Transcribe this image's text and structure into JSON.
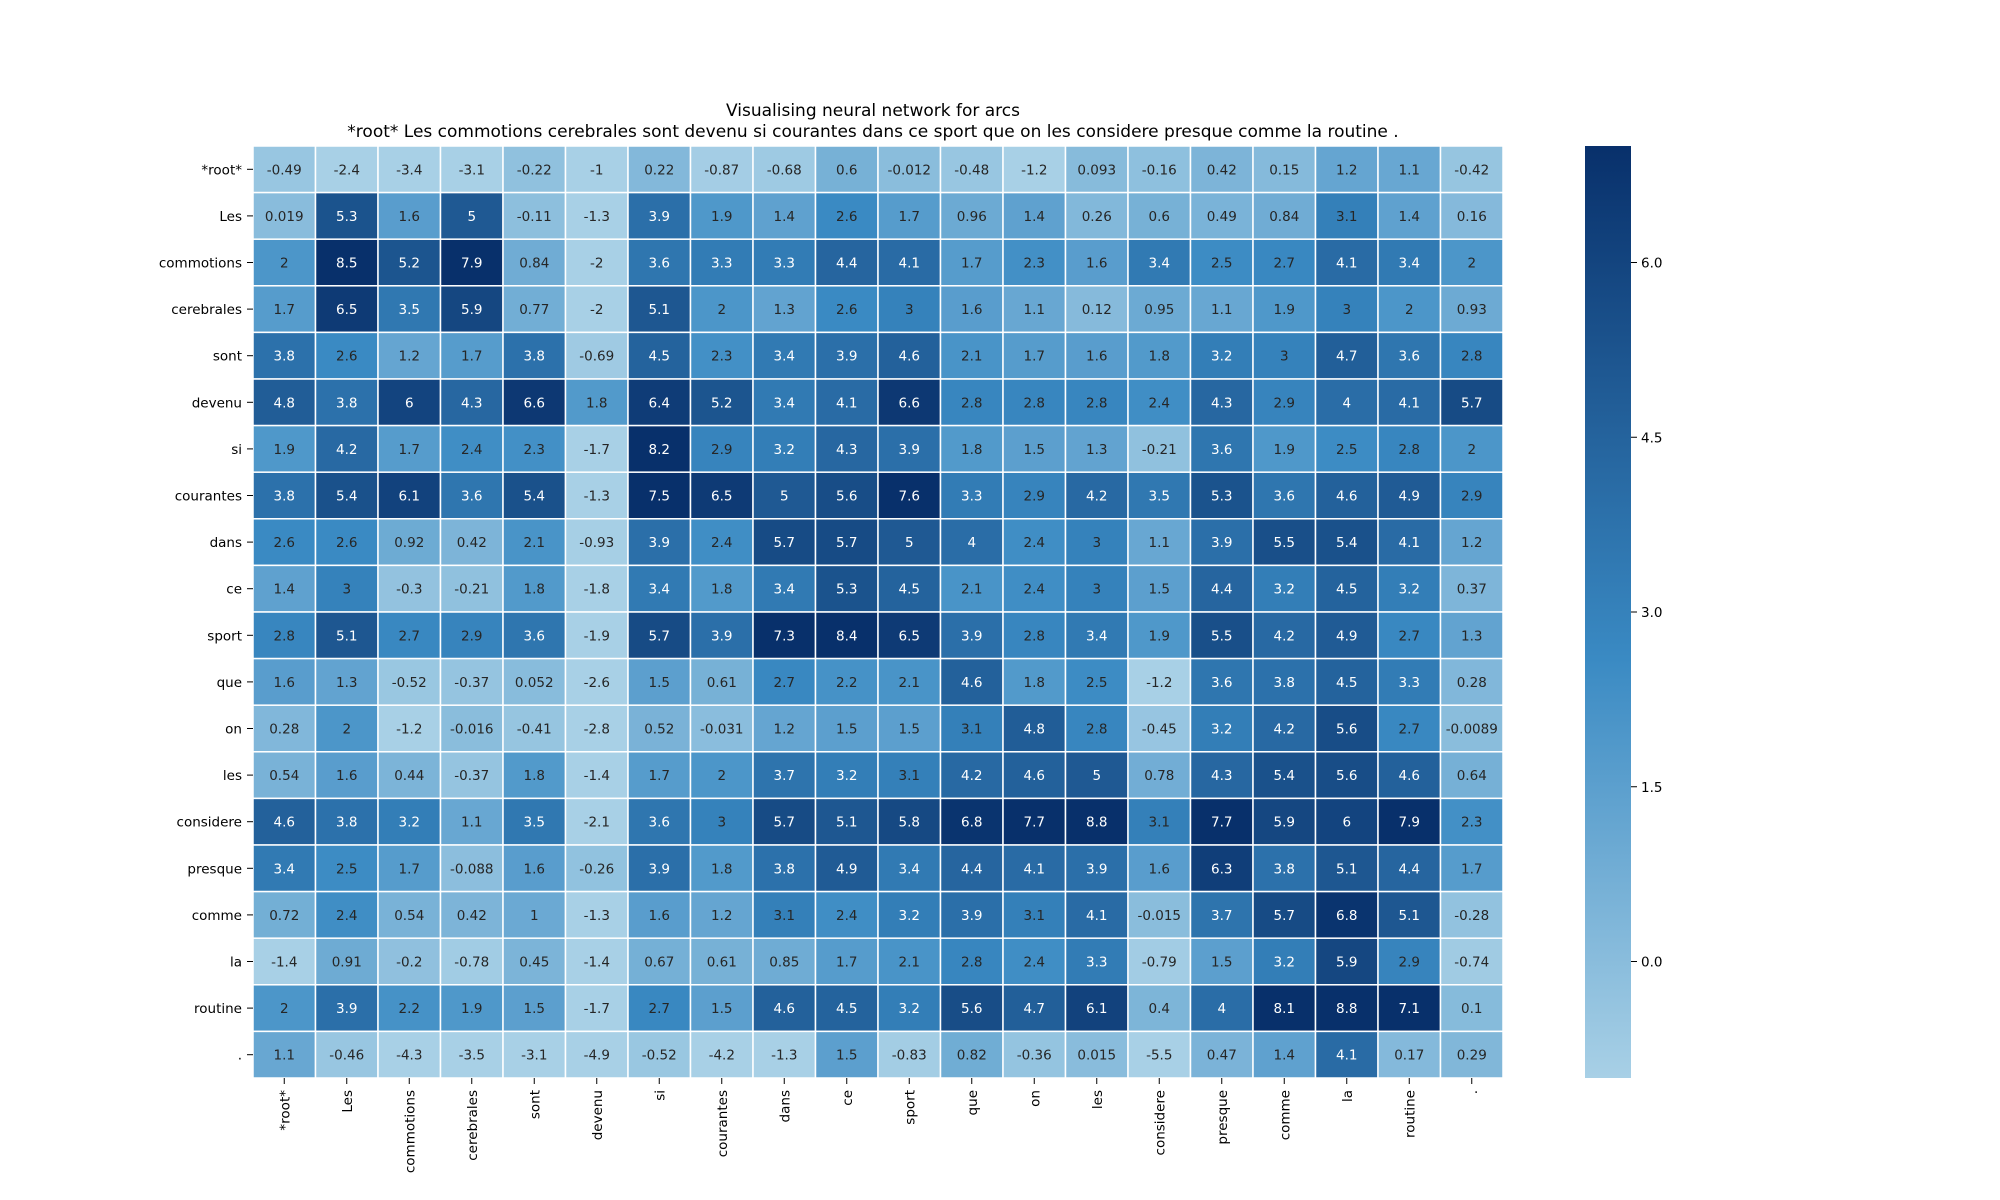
{
  "chart_data": {
    "type": "heatmap",
    "title": "Visualising neural network for arcs",
    "subtitle": "*root* Les commotions cerebrales sont devenu si courantes dans ce sport que on les considere presque comme la routine .",
    "xlabel": "",
    "ylabel": "",
    "colormap": "Blues",
    "colors": {
      "low": "#a8d0e6",
      "mid": "#3a8ac3",
      "high": "#08306b"
    },
    "vmin": -1.0,
    "vmax": 7.0,
    "colorbar_ticks": [
      "0.0",
      "1.5",
      "3.0",
      "4.5",
      "6.0"
    ],
    "row_labels": [
      "*root*",
      "Les",
      "commotions",
      "cerebrales",
      "sont",
      "devenu",
      "si",
      "courantes",
      "dans",
      "ce",
      "sport",
      "que",
      "on",
      "les",
      "considere",
      "presque",
      "comme",
      "la",
      "routine",
      "."
    ],
    "col_labels": [
      "*root*",
      "Les",
      "commotions",
      "cerebrales",
      "sont",
      "devenu",
      "si",
      "courantes",
      "dans",
      "ce",
      "sport",
      "que",
      "on",
      "les",
      "considere",
      "presque",
      "comme",
      "la",
      "routine",
      "."
    ],
    "values": [
      [
        "-0.49",
        "-2.4",
        "-3.4",
        "-3.1",
        "-0.22",
        "-1",
        "0.22",
        "-0.87",
        "-0.68",
        "0.6",
        "-0.012",
        "-0.48",
        "-1.2",
        "0.093",
        "-0.16",
        "0.42",
        "0.15",
        "1.2",
        "1.1",
        "-0.42"
      ],
      [
        "0.019",
        "5.3",
        "1.6",
        "5",
        "-0.11",
        "-1.3",
        "3.9",
        "1.9",
        "1.4",
        "2.6",
        "1.7",
        "0.96",
        "1.4",
        "0.26",
        "0.6",
        "0.49",
        "0.84",
        "3.1",
        "1.4",
        "0.16"
      ],
      [
        "2",
        "8.5",
        "5.2",
        "7.9",
        "0.84",
        "-2",
        "3.6",
        "3.3",
        "3.3",
        "4.4",
        "4.1",
        "1.7",
        "2.3",
        "1.6",
        "3.4",
        "2.5",
        "2.7",
        "4.1",
        "3.4",
        "2"
      ],
      [
        "1.7",
        "6.5",
        "3.5",
        "5.9",
        "0.77",
        "-2",
        "5.1",
        "2",
        "1.3",
        "2.6",
        "3",
        "1.6",
        "1.1",
        "0.12",
        "0.95",
        "1.1",
        "1.9",
        "3",
        "2",
        "0.93"
      ],
      [
        "3.8",
        "2.6",
        "1.2",
        "1.7",
        "3.8",
        "-0.69",
        "4.5",
        "2.3",
        "3.4",
        "3.9",
        "4.6",
        "2.1",
        "1.7",
        "1.6",
        "1.8",
        "3.2",
        "3",
        "4.7",
        "3.6",
        "2.8"
      ],
      [
        "4.8",
        "3.8",
        "6",
        "4.3",
        "6.6",
        "1.8",
        "6.4",
        "5.2",
        "3.4",
        "4.1",
        "6.6",
        "2.8",
        "2.8",
        "2.8",
        "2.4",
        "4.3",
        "2.9",
        "4",
        "4.1",
        "5.7"
      ],
      [
        "1.9",
        "4.2",
        "1.7",
        "2.4",
        "2.3",
        "-1.7",
        "8.2",
        "2.9",
        "3.2",
        "4.3",
        "3.9",
        "1.8",
        "1.5",
        "1.3",
        "-0.21",
        "3.6",
        "1.9",
        "2.5",
        "2.8",
        "2"
      ],
      [
        "3.8",
        "5.4",
        "6.1",
        "3.6",
        "5.4",
        "-1.3",
        "7.5",
        "6.5",
        "5",
        "5.6",
        "7.6",
        "3.3",
        "2.9",
        "4.2",
        "3.5",
        "5.3",
        "3.6",
        "4.6",
        "4.9",
        "2.9"
      ],
      [
        "2.6",
        "2.6",
        "0.92",
        "0.42",
        "2.1",
        "-0.93",
        "3.9",
        "2.4",
        "5.7",
        "5.7",
        "5",
        "4",
        "2.4",
        "3",
        "1.1",
        "3.9",
        "5.5",
        "5.4",
        "4.1",
        "1.2"
      ],
      [
        "1.4",
        "3",
        "-0.3",
        "-0.21",
        "1.8",
        "-1.8",
        "3.4",
        "1.8",
        "3.4",
        "5.3",
        "4.5",
        "2.1",
        "2.4",
        "3",
        "1.5",
        "4.4",
        "3.2",
        "4.5",
        "3.2",
        "0.37"
      ],
      [
        "2.8",
        "5.1",
        "2.7",
        "2.9",
        "3.6",
        "-1.9",
        "5.7",
        "3.9",
        "7.3",
        "8.4",
        "6.5",
        "3.9",
        "2.8",
        "3.4",
        "1.9",
        "5.5",
        "4.2",
        "4.9",
        "2.7",
        "1.3"
      ],
      [
        "1.6",
        "1.3",
        "-0.52",
        "-0.37",
        "0.052",
        "-2.6",
        "1.5",
        "0.61",
        "2.7",
        "2.2",
        "2.1",
        "4.6",
        "1.8",
        "2.5",
        "-1.2",
        "3.6",
        "3.8",
        "4.5",
        "3.3",
        "0.28"
      ],
      [
        "0.28",
        "2",
        "-1.2",
        "-0.016",
        "-0.41",
        "-2.8",
        "0.52",
        "-0.031",
        "1.2",
        "1.5",
        "1.5",
        "3.1",
        "4.8",
        "2.8",
        "-0.45",
        "3.2",
        "4.2",
        "5.6",
        "2.7",
        "-0.0089"
      ],
      [
        "0.54",
        "1.6",
        "0.44",
        "-0.37",
        "1.8",
        "-1.4",
        "1.7",
        "2",
        "3.7",
        "3.2",
        "3.1",
        "4.2",
        "4.6",
        "5",
        "0.78",
        "4.3",
        "5.4",
        "5.6",
        "4.6",
        "0.64"
      ],
      [
        "4.6",
        "3.8",
        "3.2",
        "1.1",
        "3.5",
        "-2.1",
        "3.6",
        "3",
        "5.7",
        "5.1",
        "5.8",
        "6.8",
        "7.7",
        "8.8",
        "3.1",
        "7.7",
        "5.9",
        "6",
        "7.9",
        "2.3"
      ],
      [
        "3.4",
        "2.5",
        "1.7",
        "-0.088",
        "1.6",
        "-0.26",
        "3.9",
        "1.8",
        "3.8",
        "4.9",
        "3.4",
        "4.4",
        "4.1",
        "3.9",
        "1.6",
        "6.3",
        "3.8",
        "5.1",
        "4.4",
        "1.7"
      ],
      [
        "0.72",
        "2.4",
        "0.54",
        "0.42",
        "1",
        "-1.3",
        "1.6",
        "1.2",
        "3.1",
        "2.4",
        "3.2",
        "3.9",
        "3.1",
        "4.1",
        "-0.015",
        "3.7",
        "5.7",
        "6.8",
        "5.1",
        "-0.28"
      ],
      [
        "-1.4",
        "0.91",
        "-0.2",
        "-0.78",
        "0.45",
        "-1.4",
        "0.67",
        "0.61",
        "0.85",
        "1.7",
        "2.1",
        "2.8",
        "2.4",
        "3.3",
        "-0.79",
        "1.5",
        "3.2",
        "5.9",
        "2.9",
        "-0.74"
      ],
      [
        "2",
        "3.9",
        "2.2",
        "1.9",
        "1.5",
        "-1.7",
        "2.7",
        "1.5",
        "4.6",
        "4.5",
        "3.2",
        "5.6",
        "4.7",
        "6.1",
        "0.4",
        "4",
        "8.1",
        "8.8",
        "7.1",
        "0.1"
      ],
      [
        "1.1",
        "-0.46",
        "-4.3",
        "-3.5",
        "-3.1",
        "-4.9",
        "-0.52",
        "-4.2",
        "-1.3",
        "1.5",
        "-0.83",
        "0.82",
        "-0.36",
        "0.015",
        "-5.5",
        "0.47",
        "1.4",
        "4.1",
        "0.17",
        "0.29"
      ]
    ]
  }
}
